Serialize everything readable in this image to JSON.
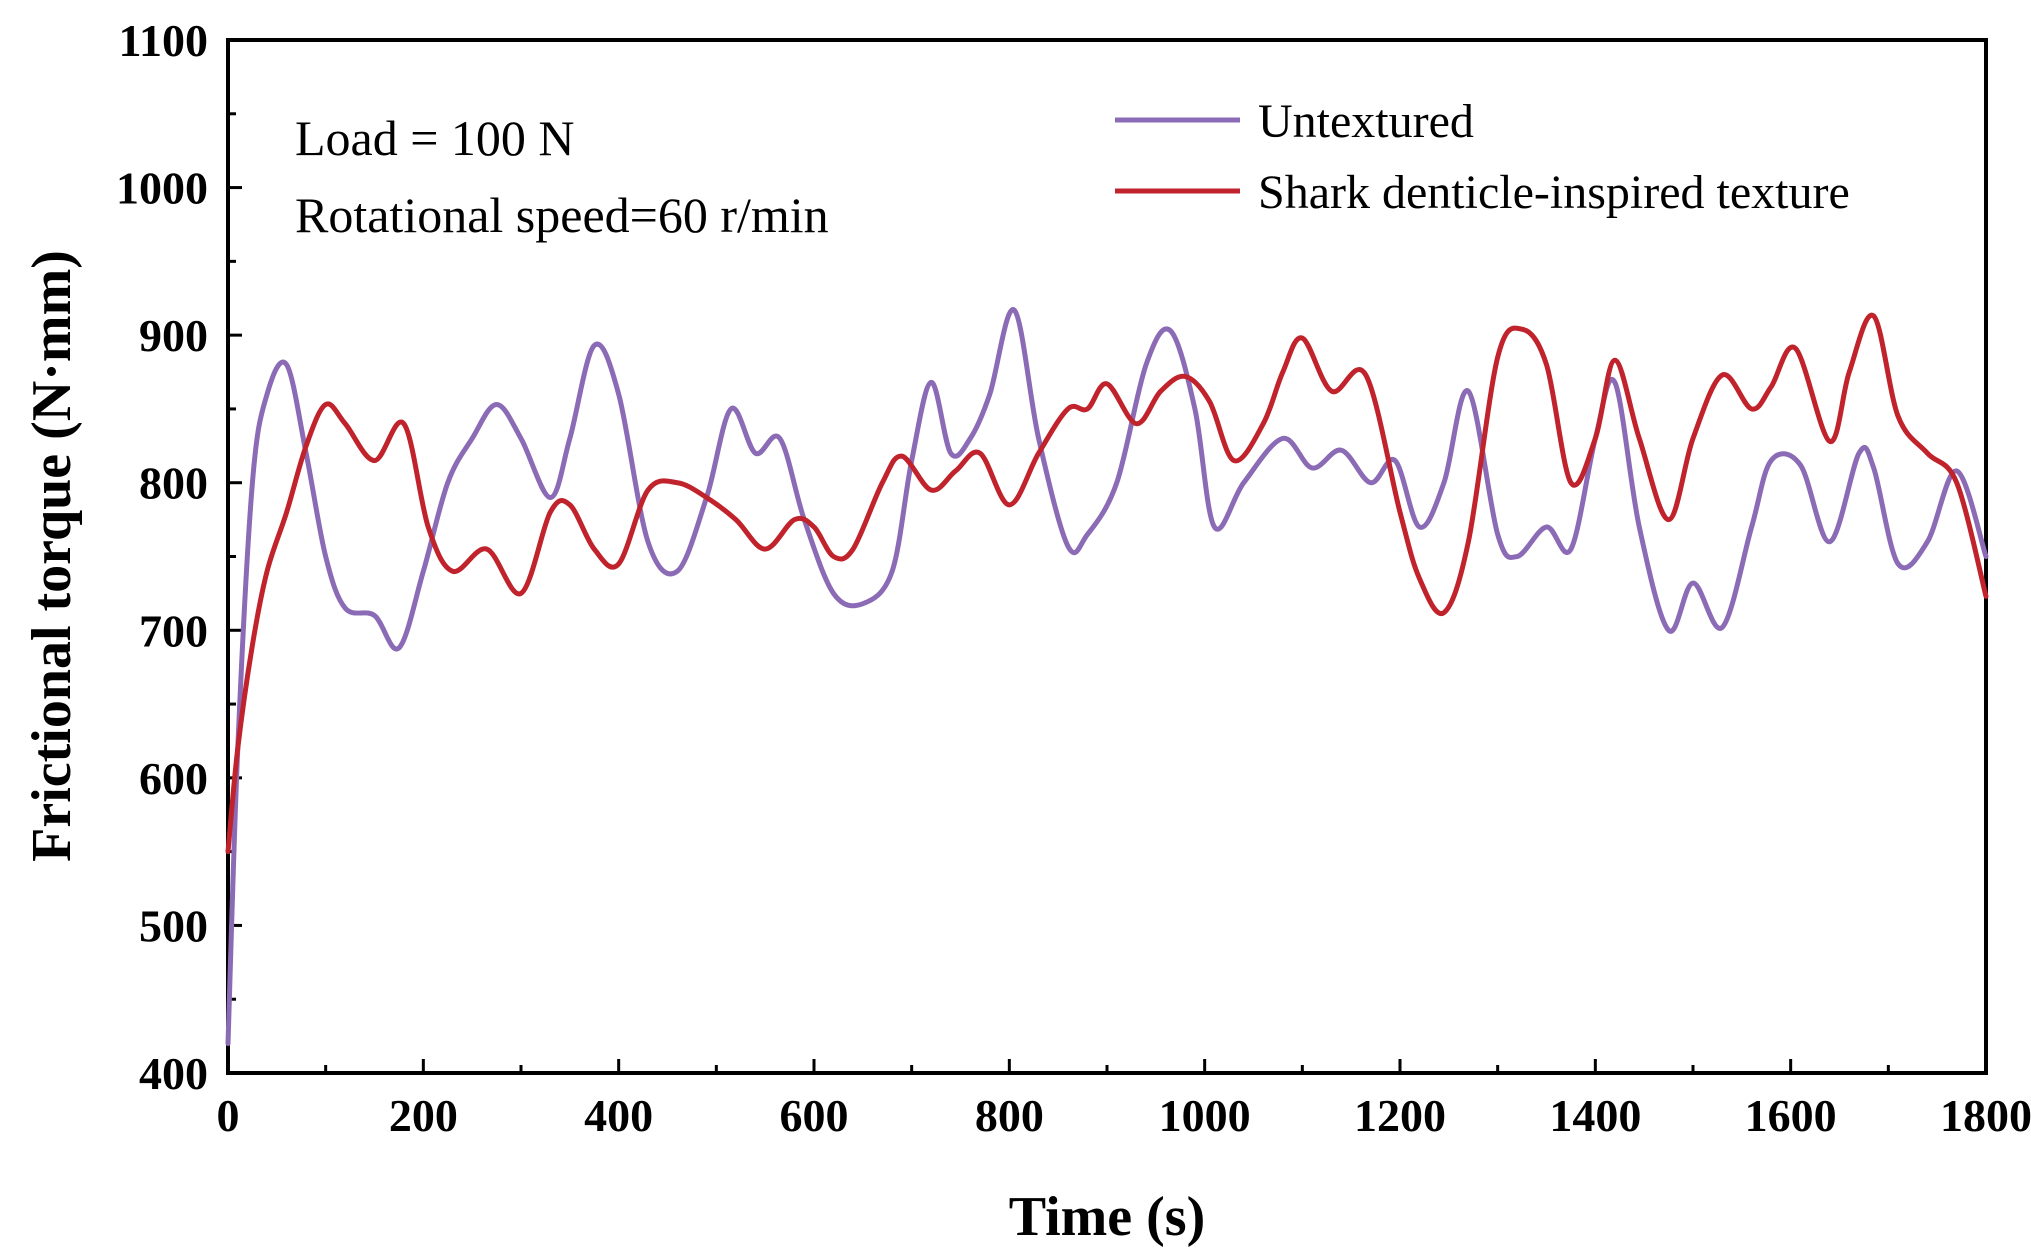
{
  "chart_data": {
    "type": "line",
    "title": "",
    "xlabel": "Time (s)",
    "ylabel": "Frictional torque (N·mm)",
    "xlim": [
      0,
      1800
    ],
    "ylim": [
      400,
      1100
    ],
    "xticks": [
      0,
      200,
      400,
      600,
      800,
      1000,
      1200,
      1400,
      1600,
      1800
    ],
    "xtick_labels": [
      "0",
      "200",
      "400",
      "600",
      "800",
      "1000",
      "1200",
      "1400",
      "1600",
      "1800"
    ],
    "yticks": [
      400,
      500,
      600,
      700,
      800,
      900,
      1000,
      1100
    ],
    "ytick_labels": [
      "400",
      "500",
      "600",
      "700",
      "800",
      "900",
      "1000",
      "1100"
    ],
    "grid": false,
    "legend_position": "top-right",
    "annotations": [
      "Load = 100 N",
      "Rotational speed=60 r/min"
    ],
    "series": [
      {
        "name": "Untextured",
        "color": "#8b6bb5",
        "x": [
          0,
          10,
          25,
          40,
          60,
          80,
          100,
          120,
          150,
          175,
          200,
          225,
          250,
          275,
          300,
          330,
          350,
          375,
          400,
          430,
          460,
          490,
          515,
          540,
          565,
          590,
          620,
          650,
          680,
          700,
          720,
          740,
          760,
          780,
          805,
          830,
          860,
          880,
          910,
          940,
          965,
          990,
          1010,
          1040,
          1080,
          1110,
          1140,
          1170,
          1195,
          1220,
          1245,
          1270,
          1300,
          1320,
          1350,
          1375,
          1400,
          1420,
          1445,
          1475,
          1500,
          1530,
          1560,
          1580,
          1610,
          1640,
          1670,
          1685,
          1710,
          1740,
          1770,
          1800
        ],
        "y": [
          420,
          620,
          800,
          860,
          880,
          820,
          750,
          715,
          710,
          688,
          740,
          800,
          830,
          853,
          830,
          790,
          830,
          893,
          860,
          760,
          740,
          790,
          850,
          820,
          830,
          775,
          725,
          718,
          740,
          815,
          868,
          820,
          830,
          860,
          917,
          830,
          757,
          765,
          800,
          880,
          903,
          850,
          770,
          800,
          830,
          810,
          822,
          800,
          815,
          770,
          800,
          862,
          765,
          750,
          770,
          755,
          830,
          868,
          770,
          700,
          732,
          702,
          770,
          815,
          812,
          760,
          820,
          810,
          745,
          760,
          808,
          750
        ]
      },
      {
        "name": "Shark denticle-inspired texture",
        "color": "#c0232b",
        "x": [
          0,
          10,
          25,
          40,
          60,
          80,
          100,
          120,
          150,
          180,
          205,
          230,
          265,
          300,
          330,
          350,
          375,
          400,
          430,
          460,
          490,
          520,
          550,
          580,
          600,
          620,
          640,
          670,
          690,
          720,
          745,
          770,
          800,
          830,
          860,
          880,
          900,
          930,
          955,
          980,
          1005,
          1030,
          1060,
          1080,
          1100,
          1130,
          1165,
          1200,
          1220,
          1245,
          1270,
          1300,
          1325,
          1350,
          1375,
          1400,
          1420,
          1445,
          1475,
          1500,
          1530,
          1560,
          1580,
          1605,
          1640,
          1660,
          1685,
          1710,
          1740,
          1770,
          1800
        ],
        "y": [
          550,
          620,
          690,
          740,
          780,
          825,
          853,
          840,
          815,
          840,
          770,
          740,
          755,
          725,
          780,
          785,
          755,
          745,
          795,
          800,
          790,
          775,
          755,
          775,
          770,
          750,
          755,
          800,
          818,
          795,
          808,
          820,
          785,
          820,
          850,
          850,
          867,
          840,
          862,
          872,
          855,
          815,
          840,
          875,
          898,
          862,
          873,
          780,
          735,
          712,
          760,
          885,
          904,
          880,
          800,
          830,
          883,
          830,
          775,
          830,
          873,
          850,
          865,
          891,
          828,
          875,
          913,
          845,
          820,
          800,
          723
        ]
      }
    ]
  }
}
